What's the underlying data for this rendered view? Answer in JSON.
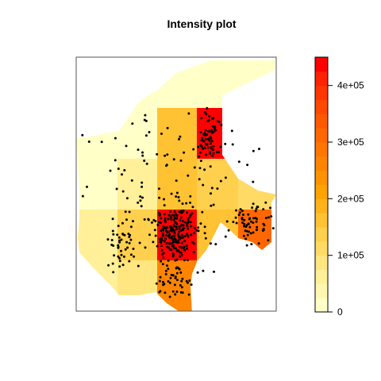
{
  "chart_data": {
    "type": "heatmap",
    "title": "Intensity plot",
    "xlabel": "",
    "ylabel": "",
    "colorbar": {
      "min": 0,
      "max": 450000,
      "ticks": [
        0,
        100000,
        200000,
        300000,
        400000
      ],
      "tick_labels": [
        "0",
        "1e+05",
        "2e+05",
        "3e+05",
        "4e+05"
      ],
      "palette": [
        "#ffffc8",
        "#fff6b0",
        "#fff099",
        "#ffe680",
        "#ffdb66",
        "#ffd04d",
        "#ffc233",
        "#ffb31a",
        "#ffa300",
        "#ff9400",
        "#ff8500",
        "#ff7700",
        "#ff6800",
        "#ff5900",
        "#ff4800",
        "#ff3600",
        "#ff2300",
        "#ff0000"
      ]
    },
    "grid": {
      "columns": 5,
      "rows": 5,
      "note_values": "approximate cell intensities, row 0 = top",
      "cells": [
        [
          15000,
          15000,
          15000,
          15000,
          15000
        ],
        [
          15000,
          20000,
          150000,
          450000,
          15000
        ],
        [
          20000,
          60000,
          160000,
          140000,
          100000
        ],
        [
          60000,
          140000,
          450000,
          170000,
          300000
        ],
        [
          60000,
          80000,
          250000,
          60000,
          60000
        ]
      ]
    },
    "points_count": 520,
    "point_clusters": [
      {
        "region": "north-east block",
        "count": 60
      },
      {
        "region": "central block",
        "count": 170
      },
      {
        "region": "east block",
        "count": 60
      },
      {
        "region": "west block",
        "count": 45
      },
      {
        "region": "south block",
        "count": 50
      },
      {
        "region": "scattered",
        "count": 135
      }
    ]
  }
}
